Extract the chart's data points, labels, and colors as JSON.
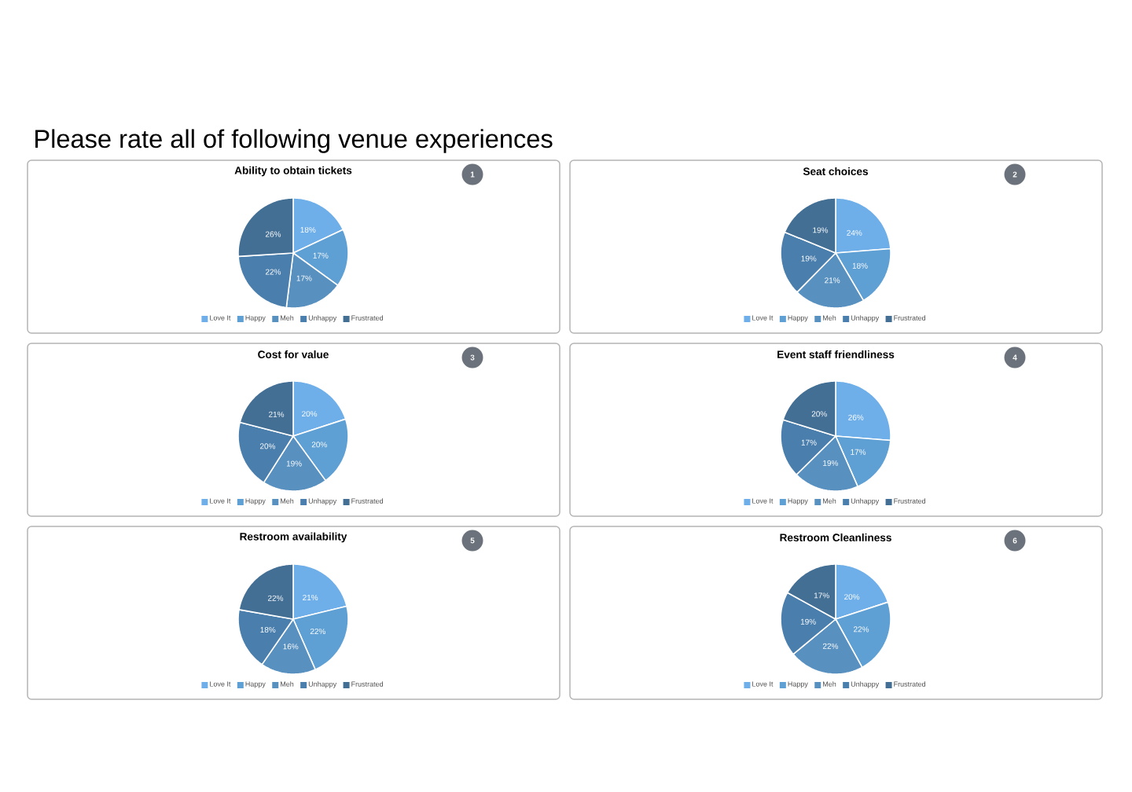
{
  "chart_data": [
    {
      "type": "other",
      "title": "Please rate all of following venue experiences"
    },
    {
      "type": "pie",
      "title": "Ability to obtain tickets",
      "categories": [
        "Love It",
        "Happy",
        "Meh",
        "Unhappy",
        "Frustrated"
      ],
      "values": [
        18,
        17,
        17,
        22,
        26
      ],
      "value_labels": [
        "18%",
        "17%",
        "17%",
        "22%",
        "26%"
      ],
      "colors": [
        "#6eaee9",
        "#5e9fd4",
        "#5890c0",
        "#4a7ead",
        "#436f95"
      ],
      "legend": "bottom",
      "annotations": [
        "1"
      ]
    },
    {
      "type": "pie",
      "title": "Seat choices",
      "categories": [
        "Love It",
        "Happy",
        "Meh",
        "Unhappy",
        "Frustrated"
      ],
      "values": [
        24,
        18,
        21,
        19,
        19
      ],
      "value_labels": [
        "24%",
        "18%",
        "21%",
        "19%",
        "19%"
      ],
      "colors": [
        "#6eaee9",
        "#5e9fd4",
        "#5890c0",
        "#4a7ead",
        "#436f95"
      ],
      "legend": "bottom",
      "annotations": [
        "2"
      ]
    },
    {
      "type": "pie",
      "title": "Cost for value",
      "categories": [
        "Love It",
        "Happy",
        "Meh",
        "Unhappy",
        "Frustrated"
      ],
      "values": [
        20,
        20,
        19,
        20,
        21
      ],
      "value_labels": [
        "20%",
        "20%",
        "19%",
        "20%",
        "21%"
      ],
      "colors": [
        "#6eaee9",
        "#5e9fd4",
        "#5890c0",
        "#4a7ead",
        "#436f95"
      ],
      "legend": "bottom",
      "annotations": [
        "3"
      ]
    },
    {
      "type": "pie",
      "title": "Event staff friendliness",
      "categories": [
        "Love It",
        "Happy",
        "Meh",
        "Unhappy",
        "Frustrated"
      ],
      "values": [
        26,
        17,
        19,
        17,
        20
      ],
      "value_labels": [
        "26%",
        "17%",
        "19%",
        "17%",
        "20%"
      ],
      "colors": [
        "#6eaee9",
        "#5e9fd4",
        "#5890c0",
        "#4a7ead",
        "#436f95"
      ],
      "legend": "bottom",
      "annotations": [
        "4"
      ]
    },
    {
      "type": "pie",
      "title": "Restroom availability",
      "categories": [
        "Love It",
        "Happy",
        "Meh",
        "Unhappy",
        "Frustrated"
      ],
      "values": [
        21,
        22,
        16,
        18,
        22
      ],
      "value_labels": [
        "21%",
        "22%",
        "16%",
        "18%",
        "22%"
      ],
      "colors": [
        "#6eaee9",
        "#5e9fd4",
        "#5890c0",
        "#4a7ead",
        "#436f95"
      ],
      "legend": "bottom",
      "annotations": [
        "5"
      ]
    },
    {
      "type": "pie",
      "title": "Restroom Cleanliness",
      "categories": [
        "Love It",
        "Happy",
        "Meh",
        "Unhappy",
        "Frustrated"
      ],
      "values": [
        20,
        22,
        22,
        19,
        17
      ],
      "value_labels": [
        "20%",
        "22%",
        "22%",
        "19%",
        "17%"
      ],
      "colors": [
        "#6eaee9",
        "#5e9fd4",
        "#5890c0",
        "#4a7ead",
        "#436f95"
      ],
      "legend": "bottom",
      "annotations": [
        "6"
      ]
    }
  ]
}
